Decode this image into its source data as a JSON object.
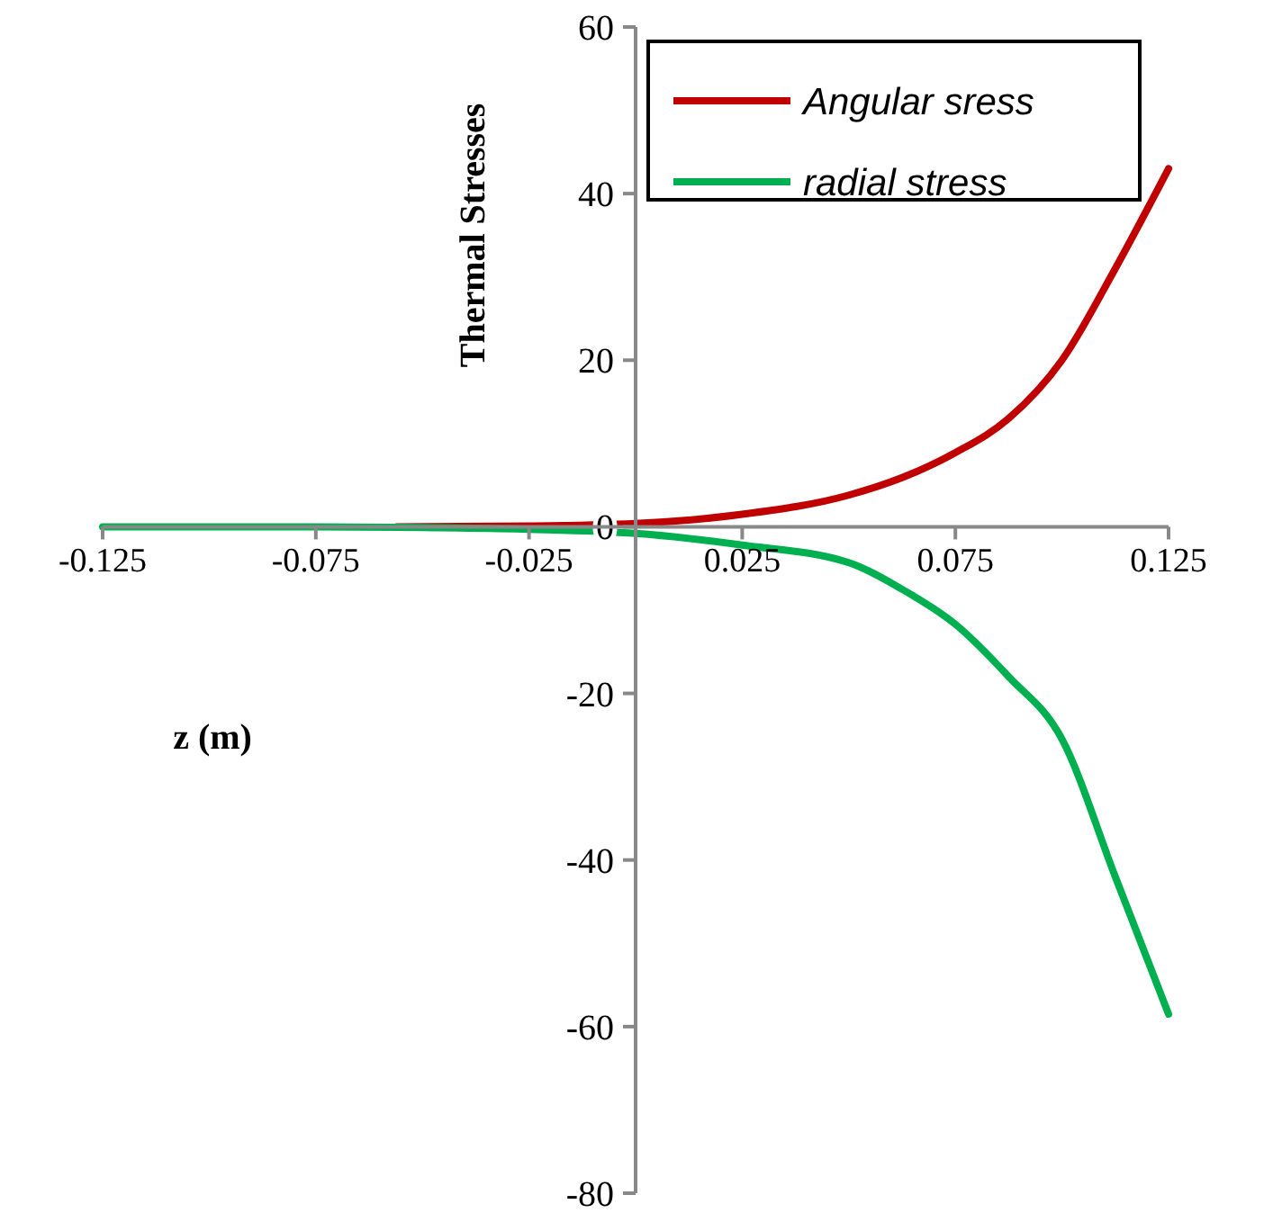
{
  "chart_data": {
    "type": "line",
    "xlabel": "z (m)",
    "ylabel": "Thermal Stresses",
    "xlim": [
      -0.125,
      0.125
    ],
    "xticks": [
      -0.125,
      -0.075,
      -0.025,
      0.025,
      0.075,
      0.125
    ],
    "ylim": [
      -80,
      60
    ],
    "yticks": [
      -80,
      -60,
      -40,
      -20,
      0,
      20,
      40,
      60
    ],
    "grid": false,
    "legend": "top right",
    "marker": "none",
    "line_style": "solid",
    "series": [
      {
        "name": "Angular sress",
        "color": "#c00000",
        "x": [
          -0.056,
          -0.025,
          0,
          0.025,
          0.05,
          0.0625,
          0.075,
          0.0875,
          0.1,
          0.1125,
          0.125
        ],
        "values": [
          0,
          0.1,
          0.4,
          1.5,
          3.8,
          5.9,
          8.9,
          13,
          20,
          31,
          43
        ]
      },
      {
        "name": "radial stress",
        "color": "#00b050",
        "x": [
          -0.125,
          -0.075,
          -0.05,
          -0.025,
          0,
          0.025,
          0.05,
          0.0625,
          0.075,
          0.0875,
          0.1,
          0.1125,
          0.125
        ],
        "values": [
          0,
          0,
          -0.1,
          -0.3,
          -0.8,
          -2.2,
          -4.3,
          -7.5,
          -11.7,
          -18,
          -25.5,
          -42,
          -58.5
        ]
      }
    ]
  }
}
